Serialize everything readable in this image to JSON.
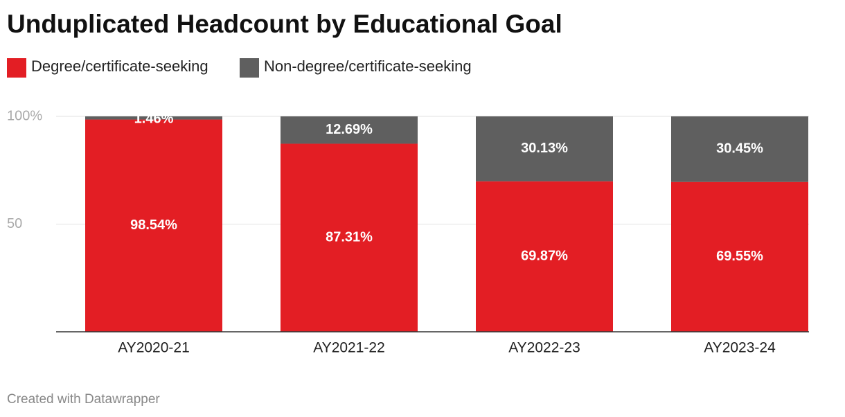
{
  "chart_data": {
    "type": "stacked_bar",
    "title": "Unduplicated Headcount by Educational Goal",
    "categories": [
      "AY2020-21",
      "AY2021-22",
      "AY2022-23",
      "AY2023-24"
    ],
    "series": [
      {
        "name": "Degree/certificate-seeking",
        "color": "#e31e24",
        "values": [
          98.54,
          87.31,
          69.87,
          69.55
        ],
        "value_labels": [
          "98.54%",
          "87.31%",
          "69.87%",
          "69.55%"
        ]
      },
      {
        "name": "Non-degree/certificate-seeking",
        "color": "#5f5f5f",
        "values": [
          1.46,
          12.69,
          30.13,
          30.45
        ],
        "value_labels": [
          "1.46%",
          "12.69%",
          "30.13%",
          "30.45%"
        ]
      }
    ],
    "ylim": [
      0,
      100
    ],
    "yticks": [
      50,
      {
        "value": 100,
        "label": "100%"
      }
    ],
    "grid": true,
    "credit": "Created with Datawrapper"
  }
}
